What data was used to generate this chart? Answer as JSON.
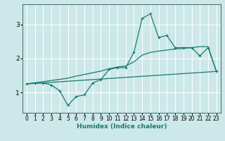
{
  "title": "",
  "xlabel": "Humidex (Indice chaleur)",
  "background_color": "#cce8e8",
  "grid_color": "#ffffff",
  "line_color": "#1a7a6e",
  "xlim": [
    -0.5,
    23.5
  ],
  "ylim": [
    0.4,
    3.6
  ],
  "xticks": [
    0,
    1,
    2,
    3,
    4,
    5,
    6,
    7,
    8,
    9,
    10,
    11,
    12,
    13,
    14,
    15,
    16,
    17,
    18,
    19,
    20,
    21,
    22,
    23
  ],
  "yticks": [
    1,
    2,
    3
  ],
  "curve1_x": [
    0,
    1,
    2,
    3,
    4,
    5,
    6,
    7,
    8,
    9,
    10,
    11,
    12,
    13,
    14,
    15,
    16,
    17,
    18,
    19,
    20,
    21,
    22,
    23
  ],
  "curve1_y": [
    1.25,
    1.28,
    1.28,
    1.22,
    1.05,
    0.62,
    0.88,
    0.93,
    1.28,
    1.38,
    1.68,
    1.73,
    1.73,
    2.18,
    3.18,
    3.32,
    2.62,
    2.68,
    2.32,
    2.32,
    2.32,
    2.08,
    2.32,
    1.62
  ],
  "curve2_x": [
    0,
    23
  ],
  "curve2_y": [
    1.25,
    1.62
  ],
  "curve3_x": [
    0,
    5,
    6,
    7,
    8,
    9,
    10,
    11,
    12,
    13,
    14,
    15,
    16,
    17,
    18,
    19,
    20,
    21,
    22,
    23
  ],
  "curve3_y": [
    1.25,
    1.42,
    1.48,
    1.53,
    1.58,
    1.63,
    1.7,
    1.75,
    1.78,
    1.9,
    2.1,
    2.18,
    2.22,
    2.25,
    2.28,
    2.3,
    2.32,
    2.35,
    2.35,
    1.62
  ]
}
